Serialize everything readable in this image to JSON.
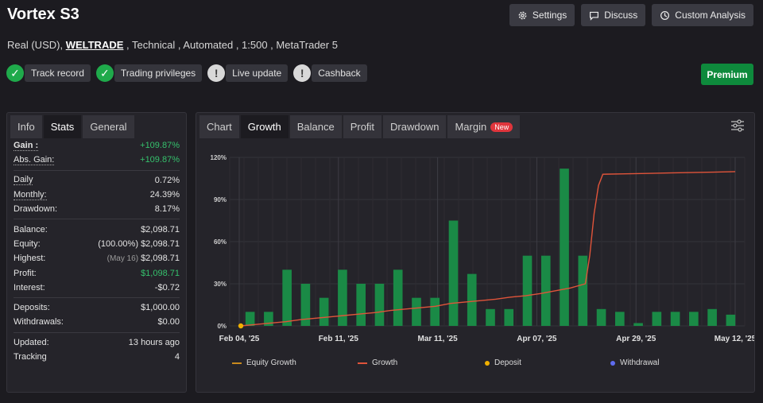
{
  "header": {
    "title": "Vortex S3",
    "account_type": "Real (USD),",
    "broker": "WELTRADE",
    "details": ", Technical , Automated , 1:500 , MetaTrader 5",
    "buttons": {
      "settings": "Settings",
      "discuss": "Discuss",
      "custom_analysis": "Custom Analysis"
    }
  },
  "badges": [
    {
      "label": "Track record",
      "status": "ok"
    },
    {
      "label": "Trading privileges",
      "status": "ok"
    },
    {
      "label": "Live update",
      "status": "warn"
    },
    {
      "label": "Cashback",
      "status": "warn"
    }
  ],
  "premium_label": "Premium",
  "stats_tabs": [
    "Info",
    "Stats",
    "General"
  ],
  "stats": {
    "gain": {
      "label": "Gain :",
      "value": "+109.87%"
    },
    "abs_gain": {
      "label": "Abs. Gain:",
      "value": "+109.87%"
    },
    "daily": {
      "label": "Daily",
      "value": "0.72%"
    },
    "monthly": {
      "label": "Monthly:",
      "value": "24.39%"
    },
    "drawdown": {
      "label": "Drawdown:",
      "value": "8.17%"
    },
    "balance": {
      "label": "Balance:",
      "value": "$2,098.71"
    },
    "equity": {
      "label": "Equity:",
      "note": "(100.00%)",
      "value": "$2,098.71"
    },
    "highest": {
      "label": "Highest:",
      "note": "(May 16)",
      "value": "$2,098.71"
    },
    "profit": {
      "label": "Profit:",
      "value": "$1,098.71"
    },
    "interest": {
      "label": "Interest:",
      "value": "-$0.72"
    },
    "deposits": {
      "label": "Deposits:",
      "value": "$1,000.00"
    },
    "withdrawals": {
      "label": "Withdrawals:",
      "value": "$0.00"
    },
    "updated": {
      "label": "Updated:",
      "value": "13 hours ago"
    },
    "tracking": {
      "label": "Tracking",
      "value": "4"
    }
  },
  "chart_tabs": [
    "Chart",
    "Growth",
    "Balance",
    "Profit",
    "Drawdown",
    "Margin"
  ],
  "new_badge": "New",
  "chart_data": {
    "type": "bar",
    "y_ticks": [
      "120%",
      "90%",
      "60%",
      "30%",
      "0%"
    ],
    "ylim": [
      0,
      120
    ],
    "x_ticks": [
      "Feb 04, '25",
      "Feb 11, '25",
      "Mar 11, '25",
      "Apr 07, '25",
      "Apr 29, '25",
      "May 12, '25"
    ],
    "bars": [
      10,
      10,
      40,
      30,
      20,
      40,
      30,
      30,
      40,
      20,
      20,
      75,
      37,
      12,
      12,
      50,
      50,
      112,
      50,
      12,
      10,
      2,
      10,
      10,
      10,
      12,
      8
    ],
    "growth_line": [
      0,
      1,
      2,
      3,
      4.5,
      5.5,
      6.5,
      7.5,
      8.5,
      9.5,
      11,
      12,
      13,
      14,
      16,
      17,
      18,
      19,
      20.5,
      21.5,
      23,
      25,
      27,
      30,
      50,
      80,
      100,
      108,
      108.3,
      108.6,
      108.9,
      109.2,
      109.5,
      109.87
    ],
    "legend": [
      "Equity Growth",
      "Growth",
      "Deposit",
      "Withdrawal"
    ],
    "colors": {
      "bar": "#1a8a46",
      "growth": "#e0543a",
      "equity": "#c98a1e",
      "deposit": "#f0b000",
      "withdrawal": "#5f6cf0"
    }
  }
}
